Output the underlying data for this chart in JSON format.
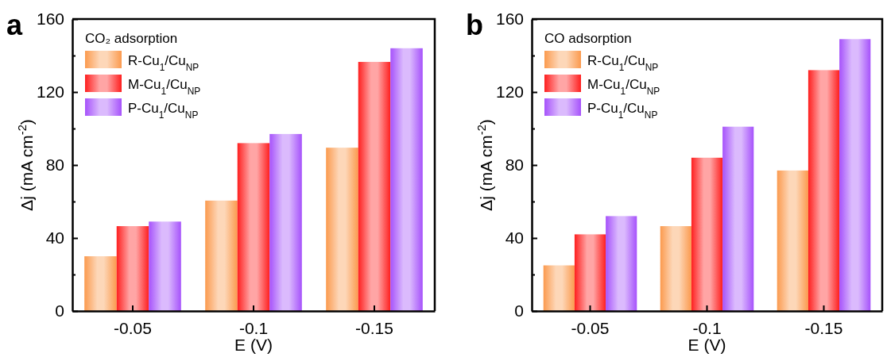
{
  "chart_data": [
    {
      "type": "bar",
      "annotations": [
        "a"
      ],
      "legend_title": "CO₂ adsorption",
      "xlabel": "E (V)",
      "ylabel": "Δj (mA cm$^{-2}$)",
      "categories": [
        "-0.05",
        "-0.1",
        "-0.15"
      ],
      "ylim": [
        0,
        160
      ],
      "yticks": [
        0,
        {
          "value": 20,
          "label": null
        },
        40,
        {
          "value": 60,
          "label": null
        },
        80,
        {
          "value": 100,
          "label": null
        },
        120,
        {
          "value": 140,
          "label": null
        },
        160
      ],
      "legend": "top left",
      "grid": false,
      "series": [
        {
          "name": "R-Cu$_{1}$/Cu$_{NP}$",
          "color": "#fb9a4e",
          "values": [
            30,
            60.5,
            89.5
          ]
        },
        {
          "name": "M-Cu$_{1}$/Cu$_{NP}$",
          "color": "#fe1f1f",
          "values": [
            46.5,
            92,
            136.5
          ]
        },
        {
          "name": "P-Cu$_{1}$/Cu$_{NP}$",
          "color": "#a652fb",
          "values": [
            49,
            97,
            144
          ]
        }
      ]
    },
    {
      "type": "bar",
      "annotations": [
        "b"
      ],
      "legend_title": "CO adsorption",
      "xlabel": "E (V)",
      "ylabel": "Δj (mA cm$^{-2}$)",
      "categories": [
        "-0.05",
        "-0.1",
        "-0.15"
      ],
      "ylim": [
        0,
        160
      ],
      "yticks": [
        0,
        {
          "value": 20,
          "label": null
        },
        40,
        {
          "value": 60,
          "label": null
        },
        80,
        {
          "value": 100,
          "label": null
        },
        120,
        {
          "value": 140,
          "label": null
        },
        160
      ],
      "legend": "top left",
      "grid": false,
      "series": [
        {
          "name": "R-Cu$_{1}$/Cu$_{NP}$",
          "color": "#fb9a4e",
          "values": [
            25,
            46.5,
            77
          ]
        },
        {
          "name": "M-Cu$_{1}$/Cu$_{NP}$",
          "color": "#fe1f1f",
          "values": [
            42,
            84,
            132
          ]
        },
        {
          "name": "P-Cu$_{1}$/Cu$_{NP}$",
          "color": "#a652fb",
          "values": [
            52,
            101,
            149
          ]
        }
      ]
    }
  ]
}
